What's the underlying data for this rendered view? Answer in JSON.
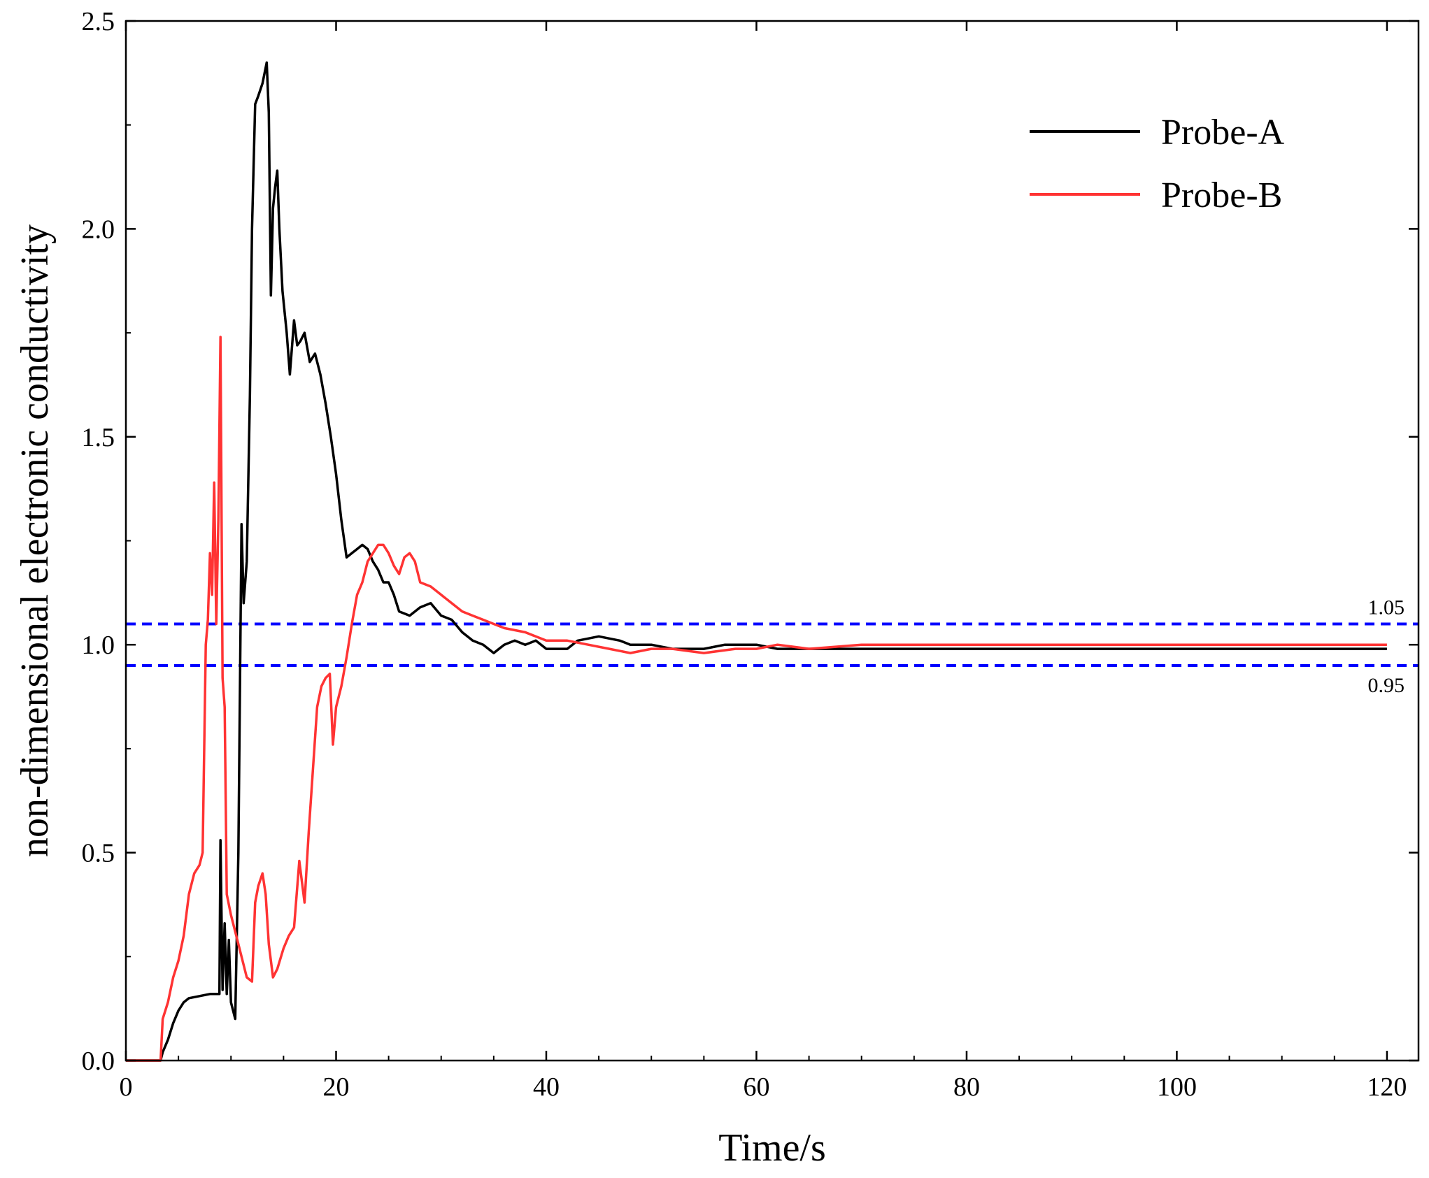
{
  "chart_data": {
    "type": "line",
    "xlabel": "Time/s",
    "ylabel": "non-dimensional electronic conductivity",
    "xlim": [
      0,
      123
    ],
    "ylim": [
      0,
      2.5
    ],
    "xticks": [
      0,
      20,
      40,
      60,
      80,
      100,
      120
    ],
    "yticks": [
      0.0,
      0.5,
      1.0,
      1.5,
      2.0,
      2.5
    ],
    "xtick_labels": [
      "0",
      "20",
      "40",
      "60",
      "80",
      "100",
      "120"
    ],
    "ytick_labels": [
      "0.0",
      "0.5",
      "1.0",
      "1.5",
      "2.0",
      "2.5"
    ],
    "grid": false,
    "legend_position": "top-right",
    "reference_lines": [
      {
        "y": 1.05,
        "label": "1.05",
        "color": "#0000ff",
        "style": "dashed"
      },
      {
        "y": 0.95,
        "label": "0.95",
        "color": "#0000ff",
        "style": "dashed"
      }
    ],
    "series": [
      {
        "name": "Probe-A",
        "color": "#000000",
        "x": [
          0,
          3.3,
          3.5,
          4,
          4.5,
          5,
          5.5,
          6,
          7,
          8,
          8.9,
          9.0,
          9.2,
          9.4,
          9.6,
          9.8,
          10.0,
          10.4,
          10.7,
          11.0,
          11.2,
          11.5,
          11.8,
          12.0,
          12.3,
          12.6,
          13.0,
          13.4,
          13.6,
          13.8,
          14.0,
          14.2,
          14.4,
          14.6,
          14.9,
          15.1,
          15.3,
          15.6,
          16.0,
          16.3,
          16.6,
          17.0,
          17.5,
          18.0,
          18.5,
          19.0,
          19.5,
          20.0,
          20.5,
          21.0,
          21.5,
          22.0,
          22.5,
          23.0,
          23.5,
          24.0,
          24.5,
          25.0,
          25.5,
          26.0,
          27.0,
          28.0,
          29.0,
          30.0,
          31.0,
          32.0,
          33.0,
          34.0,
          35.0,
          35.5,
          36.0,
          37.0,
          38.0,
          39.0,
          40.0,
          42.0,
          43.0,
          45.0,
          47.0,
          48.0,
          50.0,
          52.0,
          55.0,
          57.0,
          60.0,
          62.0,
          65.0,
          70.0,
          75.0,
          80.0,
          85.0,
          90.0,
          95.0,
          100.0,
          105.0,
          110.0,
          115.0,
          118.0,
          120.0
        ],
        "values": [
          0,
          0,
          0.02,
          0.05,
          0.09,
          0.12,
          0.14,
          0.15,
          0.155,
          0.16,
          0.16,
          0.53,
          0.17,
          0.33,
          0.16,
          0.29,
          0.14,
          0.1,
          0.5,
          1.29,
          1.1,
          1.2,
          1.6,
          2.0,
          2.3,
          2.32,
          2.35,
          2.4,
          2.28,
          1.84,
          2.05,
          2.1,
          2.14,
          2.0,
          1.85,
          1.8,
          1.75,
          1.65,
          1.78,
          1.72,
          1.73,
          1.75,
          1.68,
          1.7,
          1.65,
          1.58,
          1.5,
          1.41,
          1.3,
          1.21,
          1.22,
          1.23,
          1.24,
          1.23,
          1.2,
          1.18,
          1.15,
          1.15,
          1.12,
          1.08,
          1.07,
          1.09,
          1.1,
          1.07,
          1.06,
          1.03,
          1.01,
          1.0,
          0.98,
          0.99,
          1.0,
          1.01,
          1.0,
          1.01,
          0.99,
          0.99,
          1.01,
          1.02,
          1.01,
          1.0,
          1.0,
          0.99,
          0.99,
          1.0,
          1.0,
          0.99,
          0.99,
          0.99,
          0.99,
          0.99,
          0.99,
          0.99,
          0.99,
          0.99,
          0.99,
          0.99,
          0.99,
          0.99,
          0.99
        ]
      },
      {
        "name": "Probe-B",
        "color": "#ff3333",
        "x": [
          0,
          3.3,
          3.5,
          4,
          4.5,
          5,
          5.5,
          6,
          6.5,
          7,
          7.3,
          7.6,
          7.8,
          8.0,
          8.2,
          8.4,
          8.6,
          8.8,
          9.0,
          9.2,
          9.4,
          9.6,
          10.0,
          10.5,
          11.0,
          11.5,
          12.0,
          12.3,
          12.6,
          13.0,
          13.3,
          13.6,
          14.0,
          14.4,
          15.0,
          15.5,
          16.0,
          16.5,
          17.0,
          17.4,
          17.8,
          18.2,
          18.6,
          19.0,
          19.4,
          19.7,
          20.0,
          20.5,
          21.0,
          21.5,
          22.0,
          22.5,
          23.0,
          23.5,
          24.0,
          24.5,
          25.0,
          25.5,
          26.0,
          26.5,
          27.0,
          27.5,
          28.0,
          29.0,
          30.0,
          31.0,
          32.0,
          33.0,
          34.0,
          35.0,
          36.0,
          38.0,
          40.0,
          42.0,
          44.0,
          46.0,
          48.0,
          50.0,
          52.0,
          55.0,
          58.0,
          60.0,
          62.0,
          65.0,
          70.0,
          75.0,
          80.0,
          85.0,
          90.0,
          95.0,
          100.0,
          105.0,
          110.0,
          115.0,
          120.0
        ],
        "values": [
          0,
          0,
          0.1,
          0.14,
          0.2,
          0.24,
          0.3,
          0.4,
          0.45,
          0.47,
          0.5,
          1.0,
          1.06,
          1.22,
          1.12,
          1.39,
          1.05,
          1.3,
          1.74,
          0.92,
          0.85,
          0.4,
          0.35,
          0.3,
          0.25,
          0.2,
          0.19,
          0.38,
          0.42,
          0.45,
          0.4,
          0.28,
          0.2,
          0.22,
          0.27,
          0.3,
          0.32,
          0.48,
          0.38,
          0.55,
          0.7,
          0.85,
          0.9,
          0.92,
          0.93,
          0.76,
          0.85,
          0.9,
          0.97,
          1.05,
          1.12,
          1.15,
          1.2,
          1.22,
          1.24,
          1.24,
          1.22,
          1.19,
          1.17,
          1.21,
          1.22,
          1.2,
          1.15,
          1.14,
          1.12,
          1.1,
          1.08,
          1.07,
          1.06,
          1.05,
          1.04,
          1.03,
          1.01,
          1.01,
          1.0,
          0.99,
          0.98,
          0.99,
          0.99,
          0.98,
          0.99,
          0.99,
          1.0,
          0.99,
          1.0,
          1.0,
          1.0,
          1.0,
          1.0,
          1.0,
          1.0,
          1.0,
          1.0,
          1.0,
          1.0
        ]
      }
    ]
  }
}
